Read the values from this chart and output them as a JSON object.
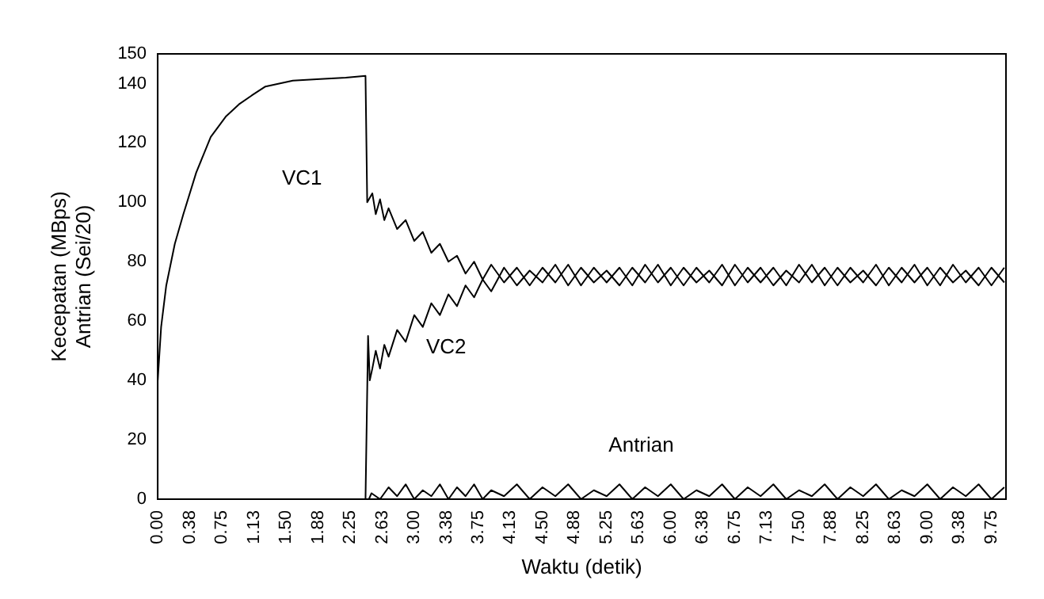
{
  "chart_data": {
    "type": "line",
    "xlabel": "Waktu (detik)",
    "ylabel": "Kecepatan (MBps)\nAntrian (Sei/20)",
    "xlim": [
      0,
      9.92
    ],
    "xticks": [
      {
        "value": 0,
        "label": "0.00"
      },
      {
        "value": 0.375,
        "label": "0.38"
      },
      {
        "value": 0.75,
        "label": "0.75"
      },
      {
        "value": 1.125,
        "label": "1.13"
      },
      {
        "value": 1.5,
        "label": "1.50"
      },
      {
        "value": 1.875,
        "label": "1.88"
      },
      {
        "value": 2.25,
        "label": "2.25"
      },
      {
        "value": 2.625,
        "label": "2.63"
      },
      {
        "value": 3,
        "label": "3.00"
      },
      {
        "value": 3.375,
        "label": "3.38"
      },
      {
        "value": 3.75,
        "label": "3.75"
      },
      {
        "value": 4.125,
        "label": "4.13"
      },
      {
        "value": 4.5,
        "label": "4.50"
      },
      {
        "value": 4.875,
        "label": "4.88"
      },
      {
        "value": 5.25,
        "label": "5.25"
      },
      {
        "value": 5.625,
        "label": "5.63"
      },
      {
        "value": 6,
        "label": "6.00"
      },
      {
        "value": 6.375,
        "label": "6.38"
      },
      {
        "value": 6.75,
        "label": "6.75"
      },
      {
        "value": 7.125,
        "label": "7.13"
      },
      {
        "value": 7.5,
        "label": "7.50"
      },
      {
        "value": 7.875,
        "label": "7.88"
      },
      {
        "value": 8.25,
        "label": "8.25"
      },
      {
        "value": 8.625,
        "label": "8.63"
      },
      {
        "value": 9,
        "label": "9.00"
      },
      {
        "value": 9.375,
        "label": "9.38"
      },
      {
        "value": 9.75,
        "label": "9.75"
      }
    ],
    "ylim": [
      0,
      150
    ],
    "yticks": [
      0,
      20,
      40,
      60,
      80,
      100,
      120,
      140,
      150
    ],
    "grid": false,
    "legend": false,
    "marker": "none",
    "line_style": "solid",
    "series": [
      {
        "name": "VC1",
        "color": "#000000",
        "x": [
          0,
          0.04,
          0.1,
          0.2,
          0.3,
          0.45,
          0.62,
          0.8,
          0.95,
          1.1,
          1.26,
          1.58,
          1.9,
          2.2,
          2.43,
          2.45,
          2.51,
          2.55,
          2.6,
          2.65,
          2.7,
          2.8,
          2.9,
          3.0,
          3.1,
          3.2,
          3.3,
          3.4,
          3.5,
          3.6,
          3.7,
          3.8,
          3.9,
          4.05,
          4.2,
          4.35,
          4.5,
          4.65,
          4.8,
          4.95,
          5.1,
          5.25,
          5.4,
          5.55,
          5.7,
          5.85,
          6.0,
          6.15,
          6.3,
          6.45,
          6.6,
          6.75,
          6.9,
          7.05,
          7.2,
          7.35,
          7.5,
          7.65,
          7.8,
          7.95,
          8.1,
          8.25,
          8.4,
          8.55,
          8.7,
          8.85,
          9.0,
          9.15,
          9.3,
          9.45,
          9.6,
          9.75,
          9.9
        ],
        "values": [
          40,
          58,
          72,
          86,
          96,
          110,
          122,
          129,
          133,
          136,
          139,
          141,
          141.5,
          142,
          142.6,
          100,
          103,
          96,
          101,
          94,
          98,
          91,
          94,
          87,
          90,
          83,
          86,
          80,
          82,
          76,
          80,
          74,
          79,
          73,
          78,
          72,
          78,
          73,
          79,
          72,
          78,
          73,
          78,
          72,
          79,
          73,
          78,
          72,
          78,
          73,
          79,
          72,
          78,
          73,
          78,
          72,
          79,
          73,
          78,
          72,
          78,
          73,
          79,
          72,
          78,
          73,
          78,
          72,
          79,
          73,
          78,
          72,
          78
        ]
      },
      {
        "name": "VC2",
        "color": "#000000",
        "x": [
          0,
          2.43,
          2.46,
          2.48,
          2.51,
          2.55,
          2.6,
          2.65,
          2.7,
          2.8,
          2.9,
          3.0,
          3.1,
          3.2,
          3.3,
          3.4,
          3.5,
          3.6,
          3.7,
          3.8,
          3.9,
          4.05,
          4.2,
          4.35,
          4.5,
          4.65,
          4.8,
          4.95,
          5.1,
          5.25,
          5.4,
          5.55,
          5.7,
          5.85,
          6.0,
          6.15,
          6.3,
          6.45,
          6.6,
          6.75,
          6.9,
          7.05,
          7.2,
          7.35,
          7.5,
          7.65,
          7.8,
          7.95,
          8.1,
          8.25,
          8.4,
          8.55,
          8.7,
          8.85,
          9.0,
          9.15,
          9.3,
          9.45,
          9.6,
          9.75,
          9.9
        ],
        "values": [
          0,
          0,
          55,
          40,
          44,
          50,
          44,
          52,
          48,
          57,
          53,
          62,
          58,
          66,
          62,
          69,
          65,
          72,
          68,
          74,
          70,
          78,
          72,
          77,
          73,
          79,
          72,
          78,
          73,
          77,
          72,
          78,
          73,
          79,
          72,
          78,
          73,
          77,
          72,
          79,
          73,
          78,
          72,
          77,
          73,
          79,
          72,
          78,
          73,
          77,
          72,
          78,
          73,
          79,
          72,
          78,
          73,
          77,
          72,
          78,
          73
        ]
      },
      {
        "name": "Antrian",
        "color": "#000000",
        "x": [
          0,
          2.47,
          2.5,
          2.6,
          2.7,
          2.8,
          2.9,
          3.0,
          3.1,
          3.2,
          3.3,
          3.4,
          3.5,
          3.6,
          3.7,
          3.8,
          3.9,
          4.05,
          4.2,
          4.35,
          4.5,
          4.65,
          4.8,
          4.95,
          5.1,
          5.25,
          5.4,
          5.55,
          5.7,
          5.85,
          6.0,
          6.15,
          6.3,
          6.45,
          6.6,
          6.75,
          6.9,
          7.05,
          7.2,
          7.35,
          7.5,
          7.65,
          7.8,
          7.95,
          8.1,
          8.25,
          8.4,
          8.55,
          8.7,
          8.85,
          9.0,
          9.15,
          9.3,
          9.45,
          9.6,
          9.75,
          9.9
        ],
        "values": [
          0,
          0,
          2,
          0,
          4,
          1,
          5,
          0,
          3,
          1,
          5,
          0,
          4,
          1,
          5,
          0,
          3,
          1,
          5,
          0,
          4,
          1,
          5,
          0,
          3,
          1,
          5,
          0,
          4,
          1,
          5,
          0,
          3,
          1,
          5,
          0,
          4,
          1,
          5,
          0,
          3,
          1,
          5,
          0,
          4,
          1,
          5,
          0,
          3,
          1,
          5,
          0,
          4,
          1,
          5,
          0,
          4
        ]
      }
    ]
  }
}
